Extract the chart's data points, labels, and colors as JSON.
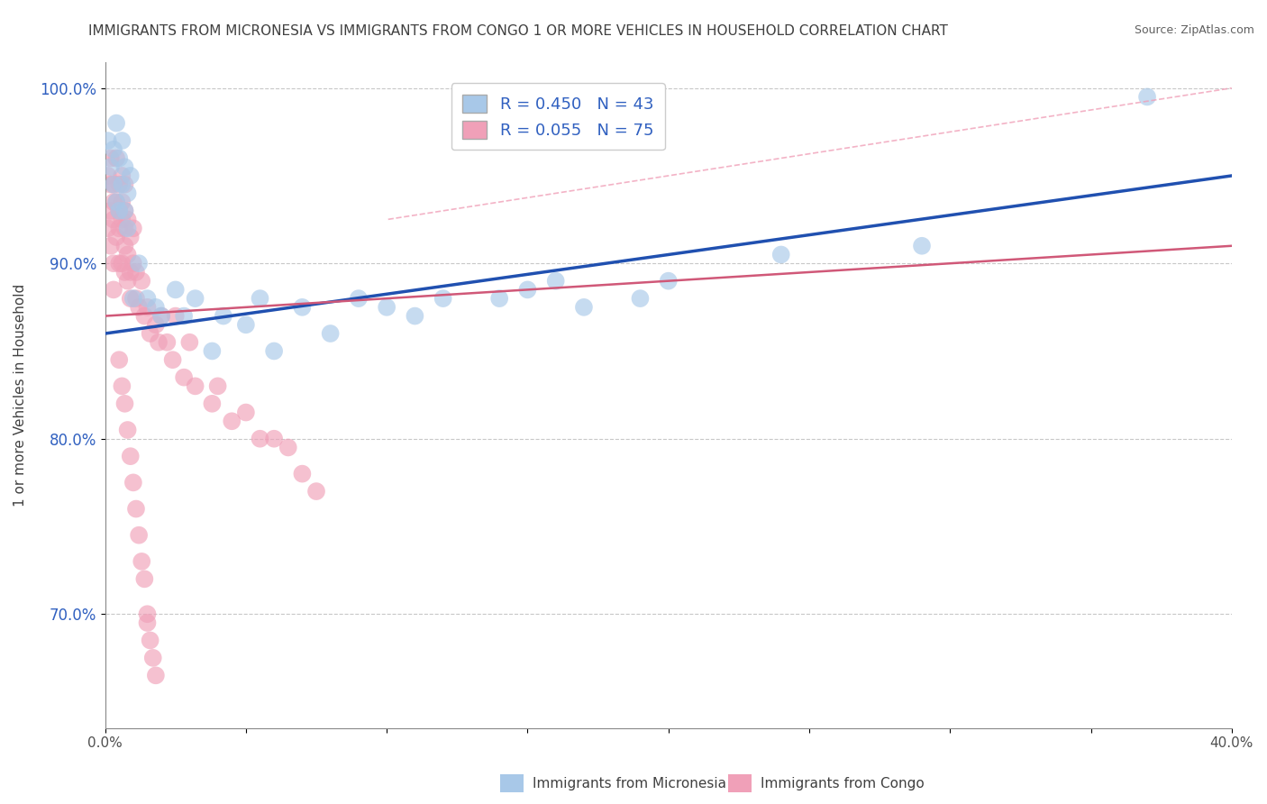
{
  "title": "IMMIGRANTS FROM MICRONESIA VS IMMIGRANTS FROM CONGO 1 OR MORE VEHICLES IN HOUSEHOLD CORRELATION CHART",
  "source": "Source: ZipAtlas.com",
  "ylabel": "1 or more Vehicles in Household",
  "xlim": [
    0.0,
    0.4
  ],
  "ylim": [
    0.635,
    1.015
  ],
  "xticks": [
    0.0,
    0.05,
    0.1,
    0.15,
    0.2,
    0.25,
    0.3,
    0.35,
    0.4
  ],
  "yticks": [
    0.7,
    0.8,
    0.9,
    1.0
  ],
  "ytick_labels": [
    "70.0%",
    "80.0%",
    "90.0%",
    "100.0%"
  ],
  "xtick_labels": [
    "0.0%",
    "",
    "",
    "",
    "",
    "",
    "",
    "",
    "40.0%"
  ],
  "R_micronesia": 0.45,
  "N_micronesia": 43,
  "R_congo": 0.055,
  "N_congo": 75,
  "color_micronesia": "#a8c8e8",
  "color_congo": "#f0a0b8",
  "line_color_micronesia": "#2050b0",
  "line_color_congo": "#d05878",
  "background_color": "#ffffff",
  "grid_color": "#c8c8c8",
  "title_color": "#404040",
  "legend_text_color": "#3060c0",
  "axis_color": "#888888",
  "micronesia_scatter_x": [
    0.001,
    0.002,
    0.003,
    0.003,
    0.004,
    0.004,
    0.005,
    0.005,
    0.006,
    0.006,
    0.007,
    0.007,
    0.008,
    0.008,
    0.009,
    0.01,
    0.012,
    0.015,
    0.018,
    0.02,
    0.025,
    0.028,
    0.032,
    0.038,
    0.042,
    0.05,
    0.055,
    0.06,
    0.07,
    0.08,
    0.09,
    0.1,
    0.11,
    0.12,
    0.14,
    0.15,
    0.16,
    0.17,
    0.19,
    0.2,
    0.24,
    0.29,
    0.37
  ],
  "micronesia_scatter_y": [
    0.97,
    0.955,
    0.945,
    0.965,
    0.935,
    0.98,
    0.96,
    0.93,
    0.945,
    0.97,
    0.93,
    0.955,
    0.92,
    0.94,
    0.95,
    0.88,
    0.9,
    0.88,
    0.875,
    0.87,
    0.885,
    0.87,
    0.88,
    0.85,
    0.87,
    0.865,
    0.88,
    0.85,
    0.875,
    0.86,
    0.88,
    0.875,
    0.87,
    0.88,
    0.88,
    0.885,
    0.89,
    0.875,
    0.88,
    0.89,
    0.905,
    0.91,
    0.995
  ],
  "congo_scatter_x": [
    0.001,
    0.001,
    0.002,
    0.002,
    0.002,
    0.002,
    0.003,
    0.003,
    0.003,
    0.003,
    0.003,
    0.004,
    0.004,
    0.004,
    0.005,
    0.005,
    0.005,
    0.005,
    0.006,
    0.006,
    0.006,
    0.006,
    0.007,
    0.007,
    0.007,
    0.007,
    0.007,
    0.008,
    0.008,
    0.008,
    0.009,
    0.009,
    0.009,
    0.01,
    0.01,
    0.011,
    0.011,
    0.012,
    0.013,
    0.014,
    0.015,
    0.016,
    0.018,
    0.019,
    0.02,
    0.022,
    0.024,
    0.025,
    0.028,
    0.03,
    0.032,
    0.038,
    0.04,
    0.045,
    0.05,
    0.055,
    0.06,
    0.065,
    0.07,
    0.075,
    0.005,
    0.006,
    0.007,
    0.008,
    0.009,
    0.01,
    0.011,
    0.012,
    0.013,
    0.014,
    0.015,
    0.015,
    0.016,
    0.017,
    0.018
  ],
  "congo_scatter_y": [
    0.95,
    0.92,
    0.945,
    0.93,
    0.91,
    0.96,
    0.945,
    0.925,
    0.935,
    0.9,
    0.885,
    0.935,
    0.915,
    0.96,
    0.945,
    0.93,
    0.9,
    0.92,
    0.925,
    0.9,
    0.935,
    0.95,
    0.91,
    0.895,
    0.92,
    0.93,
    0.945,
    0.905,
    0.925,
    0.89,
    0.915,
    0.895,
    0.88,
    0.9,
    0.92,
    0.88,
    0.895,
    0.875,
    0.89,
    0.87,
    0.875,
    0.86,
    0.865,
    0.855,
    0.87,
    0.855,
    0.845,
    0.87,
    0.835,
    0.855,
    0.83,
    0.82,
    0.83,
    0.81,
    0.815,
    0.8,
    0.8,
    0.795,
    0.78,
    0.77,
    0.845,
    0.83,
    0.82,
    0.805,
    0.79,
    0.775,
    0.76,
    0.745,
    0.73,
    0.72,
    0.7,
    0.695,
    0.685,
    0.675,
    0.665
  ]
}
